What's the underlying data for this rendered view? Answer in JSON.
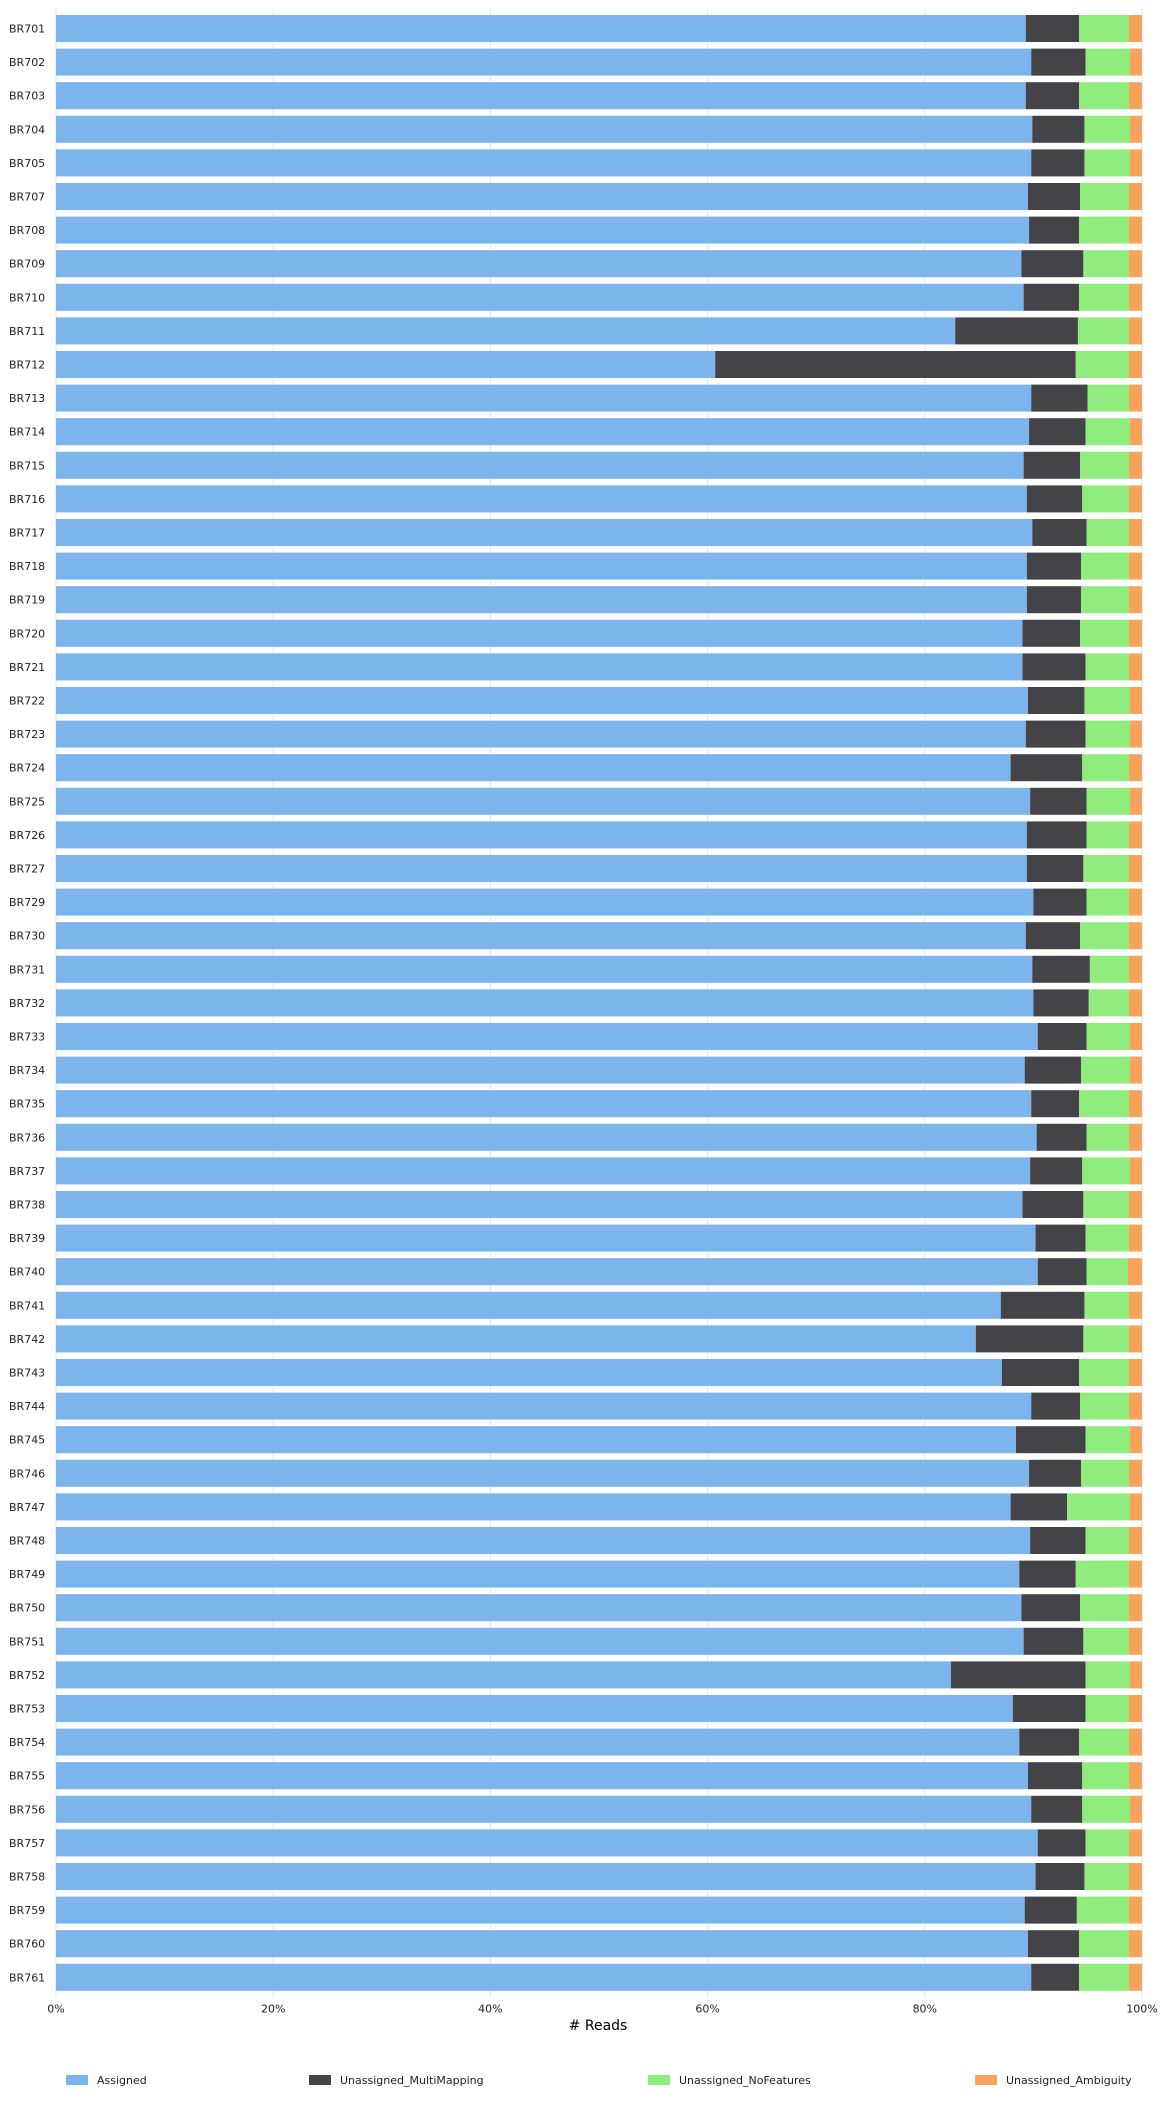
{
  "chart_data": {
    "type": "bar",
    "orientation": "horizontal",
    "stacked": true,
    "percent": true,
    "xlabel": "# Reads",
    "xlim": [
      0,
      100
    ],
    "xticks": [
      "0%",
      "20%",
      "40%",
      "60%",
      "80%",
      "100%"
    ],
    "grid": true,
    "legend_position": "bottom",
    "categories": [
      "BR701",
      "BR702",
      "BR703",
      "BR704",
      "BR705",
      "BR707",
      "BR708",
      "BR709",
      "BR710",
      "BR711",
      "BR712",
      "BR713",
      "BR714",
      "BR715",
      "BR716",
      "BR717",
      "BR718",
      "BR719",
      "BR720",
      "BR721",
      "BR722",
      "BR723",
      "BR724",
      "BR725",
      "BR726",
      "BR727",
      "BR729",
      "BR730",
      "BR731",
      "BR732",
      "BR733",
      "BR734",
      "BR735",
      "BR736",
      "BR737",
      "BR738",
      "BR739",
      "BR740",
      "BR741",
      "BR742",
      "BR743",
      "BR744",
      "BR745",
      "BR746",
      "BR747",
      "BR748",
      "BR749",
      "BR750",
      "BR751",
      "BR752",
      "BR753",
      "BR754",
      "BR755",
      "BR756",
      "BR757",
      "BR758",
      "BR759",
      "BR760",
      "BR761"
    ],
    "series": [
      {
        "name": "Assigned",
        "color": "#7cb5ec",
        "values": [
          89.3,
          89.8,
          89.3,
          89.9,
          89.8,
          89.5,
          89.6,
          88.9,
          89.1,
          82.8,
          60.7,
          89.8,
          89.6,
          89.1,
          89.4,
          89.9,
          89.4,
          89.4,
          89.0,
          89.0,
          89.5,
          89.3,
          87.9,
          89.7,
          89.4,
          89.4,
          90.0,
          89.3,
          89.9,
          90.0,
          90.4,
          89.2,
          89.8,
          90.3,
          89.7,
          89.0,
          90.2,
          90.4,
          87.0,
          84.7,
          87.1,
          89.8,
          88.4,
          89.6,
          87.9,
          89.7,
          88.7,
          88.9,
          89.1,
          82.4,
          88.1,
          88.7,
          89.5,
          89.8,
          90.4,
          90.2,
          89.2,
          89.5,
          89.8
        ]
      },
      {
        "name": "Unassigned_MultiMapping",
        "color": "#434348",
        "values": [
          4.9,
          5.0,
          4.9,
          4.8,
          4.9,
          4.8,
          4.6,
          5.7,
          5.1,
          11.3,
          33.2,
          5.2,
          5.2,
          5.2,
          5.1,
          5.0,
          5.0,
          5.0,
          5.3,
          5.8,
          5.2,
          5.5,
          6.6,
          5.2,
          5.5,
          5.2,
          4.9,
          5.0,
          5.3,
          5.1,
          4.5,
          5.2,
          4.4,
          4.6,
          4.8,
          5.6,
          4.6,
          4.5,
          7.7,
          9.9,
          7.1,
          4.5,
          6.4,
          4.8,
          5.2,
          5.1,
          5.2,
          5.4,
          5.5,
          12.4,
          6.7,
          5.5,
          5.0,
          4.7,
          4.4,
          4.5,
          4.8,
          4.7,
          4.4
        ]
      },
      {
        "name": "Unassigned_NoFeatures",
        "color": "#90ed7d",
        "values": [
          4.6,
          4.1,
          4.6,
          4.2,
          4.2,
          4.5,
          4.6,
          4.2,
          4.6,
          4.7,
          4.9,
          3.8,
          4.1,
          4.5,
          4.3,
          3.9,
          4.4,
          4.4,
          4.5,
          4.0,
          4.2,
          4.1,
          4.3,
          4.0,
          3.9,
          4.2,
          3.9,
          4.5,
          3.6,
          3.7,
          4.0,
          4.5,
          4.6,
          3.9,
          4.4,
          4.2,
          4.0,
          3.8,
          4.1,
          4.2,
          4.6,
          4.5,
          4.1,
          4.4,
          5.8,
          4.0,
          4.9,
          4.5,
          4.2,
          4.1,
          4.0,
          4.6,
          4.3,
          4.4,
          4.0,
          4.1,
          4.8,
          4.6,
          4.6
        ]
      },
      {
        "name": "Unassigned_Ambiguity",
        "color": "#f7a35c",
        "values": [
          1.2,
          1.1,
          1.2,
          1.1,
          1.1,
          1.2,
          1.2,
          1.2,
          1.2,
          1.2,
          1.2,
          1.2,
          1.1,
          1.2,
          1.2,
          1.2,
          1.2,
          1.2,
          1.2,
          1.2,
          1.1,
          1.1,
          1.2,
          1.1,
          1.2,
          1.2,
          1.2,
          1.2,
          1.2,
          1.2,
          1.1,
          1.1,
          1.2,
          1.2,
          1.1,
          1.2,
          1.2,
          1.3,
          1.2,
          1.2,
          1.2,
          1.2,
          1.1,
          1.2,
          1.1,
          1.2,
          1.2,
          1.2,
          1.2,
          1.1,
          1.2,
          1.2,
          1.2,
          1.1,
          1.2,
          1.2,
          1.2,
          1.2,
          1.2
        ]
      }
    ]
  }
}
